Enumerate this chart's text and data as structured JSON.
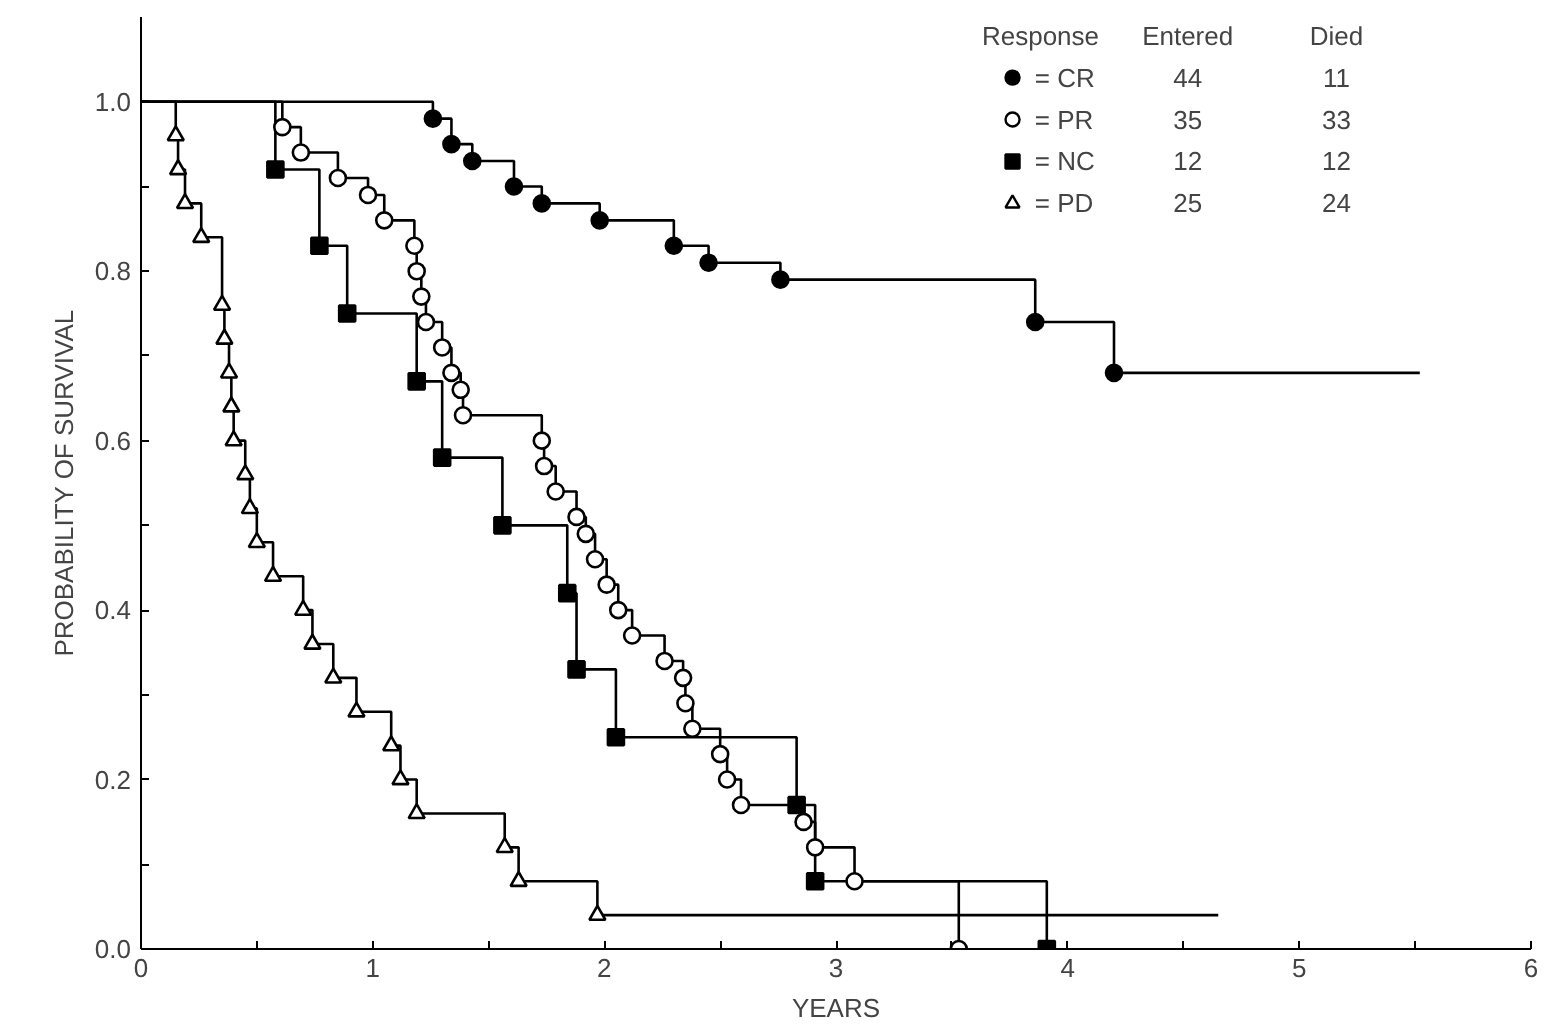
{
  "chart_data": {
    "type": "step",
    "xlabel": "YEARS",
    "ylabel": "PROBABILITY OF SURVIVAL",
    "legend_title": "Response",
    "legend": "top right",
    "grid": false,
    "annotations": [
      "Entered",
      "Died",
      "44",
      "11",
      "35",
      "33",
      "12",
      "12",
      "25",
      "24"
    ],
    "xlim": [
      0,
      6
    ],
    "ylim": [
      0,
      1.1
    ],
    "xticks": [
      0,
      {
        "value": 0.5,
        "label": null
      },
      1,
      {
        "value": 1.5,
        "label": null
      },
      2,
      {
        "value": 2.5,
        "label": null
      },
      3,
      {
        "value": 3.5,
        "label": null
      },
      4,
      {
        "value": 4.5,
        "label": null
      },
      5,
      {
        "value": 5.5,
        "label": null
      },
      6
    ],
    "yticks": [
      {
        "value": 0,
        "label": "0.0"
      },
      {
        "value": 0.1,
        "label": null
      },
      {
        "value": 0.2,
        "label": "0.2"
      },
      {
        "value": 0.3,
        "label": null
      },
      {
        "value": 0.4,
        "label": "0.4"
      },
      {
        "value": 0.5,
        "label": null
      },
      {
        "value": 0.6,
        "label": "0.6"
      },
      {
        "value": 0.7,
        "label": null
      },
      {
        "value": 0.8,
        "label": "0.8"
      },
      {
        "value": 0.9,
        "label": null
      },
      {
        "value": 1.0,
        "label": "1.0"
      }
    ],
    "series": [
      {
        "color": "#000000",
        "x": [
          0,
          1.26,
          1.34,
          1.43,
          1.61,
          1.73,
          1.98,
          2.3,
          2.45,
          2.76,
          3.86,
          4.2,
          5.52
        ],
        "values": [
          1.0,
          0.98,
          0.95,
          0.93,
          0.9,
          0.88,
          0.86,
          0.83,
          0.81,
          0.79,
          0.74,
          0.68,
          0.68
        ]
      },
      {
        "color": "#000000",
        "x": [
          0,
          0.61,
          0.69,
          0.85,
          0.98,
          1.05,
          1.18,
          1.19,
          1.21,
          1.23,
          1.3,
          1.34,
          1.38,
          1.39,
          1.73,
          1.74,
          1.79,
          1.88,
          1.92,
          1.96,
          2.01,
          2.06,
          2.12,
          2.26,
          2.34,
          2.35,
          2.38,
          2.5,
          2.53,
          2.59,
          2.86,
          2.91,
          3.08,
          3.53
        ],
        "values": [
          1.0,
          0.97,
          0.94,
          0.91,
          0.89,
          0.86,
          0.83,
          0.8,
          0.77,
          0.74,
          0.71,
          0.68,
          0.66,
          0.63,
          0.6,
          0.57,
          0.54,
          0.51,
          0.49,
          0.46,
          0.43,
          0.4,
          0.37,
          0.34,
          0.32,
          0.29,
          0.26,
          0.23,
          0.2,
          0.17,
          0.15,
          0.12,
          0.08,
          0.0
        ]
      },
      {
        "color": "#000000",
        "x": [
          0,
          0.58,
          0.77,
          0.89,
          1.19,
          1.3,
          1.56,
          1.84,
          1.88,
          2.05,
          2.83,
          2.91,
          3.91
        ],
        "values": [
          1.0,
          0.92,
          0.83,
          0.75,
          0.67,
          0.58,
          0.5,
          0.42,
          0.33,
          0.25,
          0.17,
          0.08,
          0.0
        ]
      },
      {
        "color": "#000000",
        "x": [
          0,
          0.15,
          0.16,
          0.19,
          0.26,
          0.35,
          0.36,
          0.38,
          0.39,
          0.4,
          0.45,
          0.47,
          0.5,
          0.57,
          0.7,
          0.74,
          0.83,
          0.93,
          1.08,
          1.12,
          1.19,
          1.57,
          1.63,
          1.97,
          4.65
        ],
        "values": [
          1.0,
          0.96,
          0.92,
          0.88,
          0.84,
          0.76,
          0.72,
          0.68,
          0.64,
          0.6,
          0.56,
          0.52,
          0.48,
          0.44,
          0.4,
          0.36,
          0.32,
          0.28,
          0.24,
          0.2,
          0.16,
          0.12,
          0.08,
          0.04,
          0.04
        ]
      },
      {
        "type": "scatter",
        "name": "= CR",
        "marker": "circle",
        "color": "#000000",
        "x": [
          1.26,
          1.34,
          1.43,
          1.61,
          1.73,
          1.98,
          2.3,
          2.45,
          2.76,
          3.86,
          4.2
        ],
        "values": [
          0.98,
          0.95,
          0.93,
          0.9,
          0.88,
          0.86,
          0.83,
          0.81,
          0.79,
          0.74,
          0.68
        ]
      },
      {
        "type": "scatter",
        "name": "= PR",
        "marker": "circle",
        "color": "#ffffff",
        "x": [
          0.61,
          0.69,
          0.85,
          0.98,
          1.05,
          1.18,
          1.19,
          1.21,
          1.23,
          1.3,
          1.34,
          1.38,
          1.39,
          1.73,
          1.74,
          1.79,
          1.88,
          1.92,
          1.96,
          2.01,
          2.06,
          2.12,
          2.26,
          2.34,
          2.35,
          2.38,
          2.5,
          2.53,
          2.59,
          2.86,
          2.91,
          3.08,
          3.53
        ],
        "values": [
          0.97,
          0.94,
          0.91,
          0.89,
          0.86,
          0.83,
          0.8,
          0.77,
          0.74,
          0.71,
          0.68,
          0.66,
          0.63,
          0.6,
          0.57,
          0.54,
          0.51,
          0.49,
          0.46,
          0.43,
          0.4,
          0.37,
          0.34,
          0.32,
          0.29,
          0.26,
          0.23,
          0.2,
          0.17,
          0.15,
          0.12,
          0.08,
          0.0
        ]
      },
      {
        "type": "scatter",
        "name": "= NC",
        "marker": "square",
        "color": "#000000",
        "x": [
          0.58,
          0.77,
          0.89,
          1.19,
          1.3,
          1.56,
          1.84,
          1.88,
          2.05,
          2.83,
          2.91,
          3.91
        ],
        "values": [
          0.92,
          0.83,
          0.75,
          0.67,
          0.58,
          0.5,
          0.42,
          0.33,
          0.25,
          0.17,
          0.08,
          0.0
        ]
      },
      {
        "type": "scatter",
        "name": "= PD",
        "marker": "triangle",
        "color": "#ffffff",
        "x": [
          0.15,
          0.16,
          0.19,
          0.26,
          0.35,
          0.36,
          0.38,
          0.39,
          0.4,
          0.45,
          0.47,
          0.5,
          0.57,
          0.7,
          0.74,
          0.83,
          0.93,
          1.08,
          1.12,
          1.19,
          1.57,
          1.63,
          1.97
        ],
        "values": [
          0.96,
          0.92,
          0.88,
          0.84,
          0.76,
          0.72,
          0.68,
          0.64,
          0.6,
          0.56,
          0.52,
          0.48,
          0.44,
          0.4,
          0.36,
          0.32,
          0.28,
          0.24,
          0.2,
          0.16,
          0.12,
          0.08,
          0.04
        ]
      }
    ]
  }
}
